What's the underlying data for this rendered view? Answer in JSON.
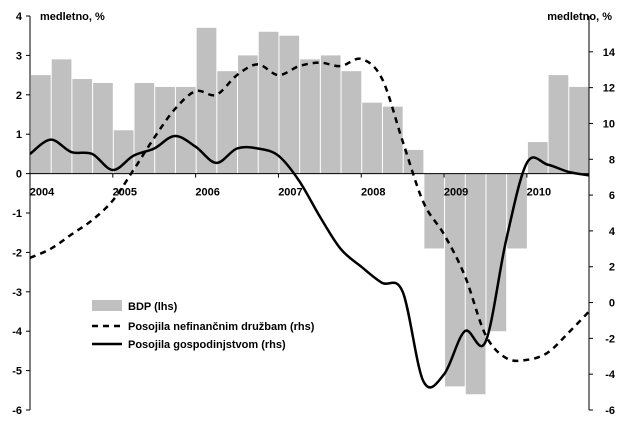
{
  "chart_data": {
    "type": "bar+line",
    "left_axis": {
      "unit_label": "medletno, %",
      "ylim": [
        -6,
        4
      ],
      "ticks": [
        "4",
        "3",
        "2",
        "1",
        "0",
        "-1",
        "-2",
        "-3",
        "-4",
        "-5",
        "-6"
      ]
    },
    "right_axis": {
      "unit_label": "medletno, %",
      "ylim": [
        -6,
        16
      ],
      "ticks": [
        "14",
        "12",
        "10",
        "8",
        "6",
        "4",
        "2",
        "0",
        "-2",
        "-4",
        "-6"
      ]
    },
    "x_axis": {
      "range": [
        2004.0,
        2010.75
      ],
      "ticks": [
        "2004",
        "2005",
        "2006",
        "2007",
        "2008",
        "2009",
        "2010"
      ]
    },
    "grid": false,
    "legend_position": "bottom-left",
    "series": [
      {
        "name": "BDP (lhs)",
        "type": "bar",
        "axis": "left",
        "color": "#c0c0c0",
        "x": [
          2004.0,
          2004.25,
          2004.5,
          2004.75,
          2005.0,
          2005.25,
          2005.5,
          2005.75,
          2006.0,
          2006.25,
          2006.5,
          2006.75,
          2007.0,
          2007.25,
          2007.5,
          2007.75,
          2008.0,
          2008.25,
          2008.5,
          2008.75,
          2009.0,
          2009.25,
          2009.5,
          2009.75,
          2010.0,
          2010.25,
          2010.5
        ],
        "values": [
          2.5,
          2.9,
          2.4,
          2.3,
          1.1,
          2.3,
          2.2,
          2.2,
          3.7,
          2.6,
          3.0,
          3.6,
          3.5,
          2.9,
          3.0,
          2.6,
          1.8,
          1.7,
          0.6,
          -1.9,
          -5.4,
          -5.6,
          -4.0,
          -1.9,
          0.8,
          2.5,
          2.2
        ]
      },
      {
        "name": "Posojila nefinančnim družbam (rhs)",
        "type": "line",
        "style": "dashed",
        "axis": "right",
        "color": "#000000",
        "x": [
          2004.0,
          2004.25,
          2004.5,
          2004.75,
          2005.0,
          2005.25,
          2005.5,
          2005.75,
          2006.0,
          2006.25,
          2006.5,
          2006.75,
          2007.0,
          2007.25,
          2007.5,
          2007.75,
          2008.0,
          2008.25,
          2008.5,
          2008.75,
          2009.0,
          2009.25,
          2009.5,
          2009.75,
          2010.0,
          2010.25,
          2010.5,
          2010.75
        ],
        "values": [
          2.5,
          3.0,
          3.8,
          4.6,
          5.7,
          7.4,
          9.2,
          10.8,
          11.8,
          11.6,
          12.7,
          13.3,
          12.7,
          13.2,
          13.4,
          13.2,
          13.6,
          12.5,
          9.0,
          5.6,
          3.8,
          1.5,
          -1.8,
          -3.1,
          -3.2,
          -2.8,
          -1.7,
          -0.5
        ]
      },
      {
        "name": "Posojila gospodinjstvom (rhs)",
        "type": "line",
        "style": "solid",
        "axis": "right",
        "color": "#000000",
        "x": [
          2004.0,
          2004.25,
          2004.5,
          2004.75,
          2005.0,
          2005.25,
          2005.5,
          2005.75,
          2006.0,
          2006.25,
          2006.5,
          2006.75,
          2007.0,
          2007.25,
          2007.5,
          2007.75,
          2008.0,
          2008.25,
          2008.5,
          2008.75,
          2009.0,
          2009.25,
          2009.5,
          2009.75,
          2010.0,
          2010.25,
          2010.5,
          2010.75
        ],
        "values": [
          8.3,
          9.1,
          8.4,
          8.3,
          7.4,
          8.2,
          8.6,
          9.3,
          8.7,
          7.8,
          8.6,
          8.6,
          8.2,
          6.8,
          4.8,
          3.0,
          2.0,
          1.1,
          0.6,
          -4.4,
          -4.0,
          -1.6,
          -2.2,
          3.5,
          7.8,
          7.7,
          7.3,
          7.1
        ]
      }
    ]
  }
}
